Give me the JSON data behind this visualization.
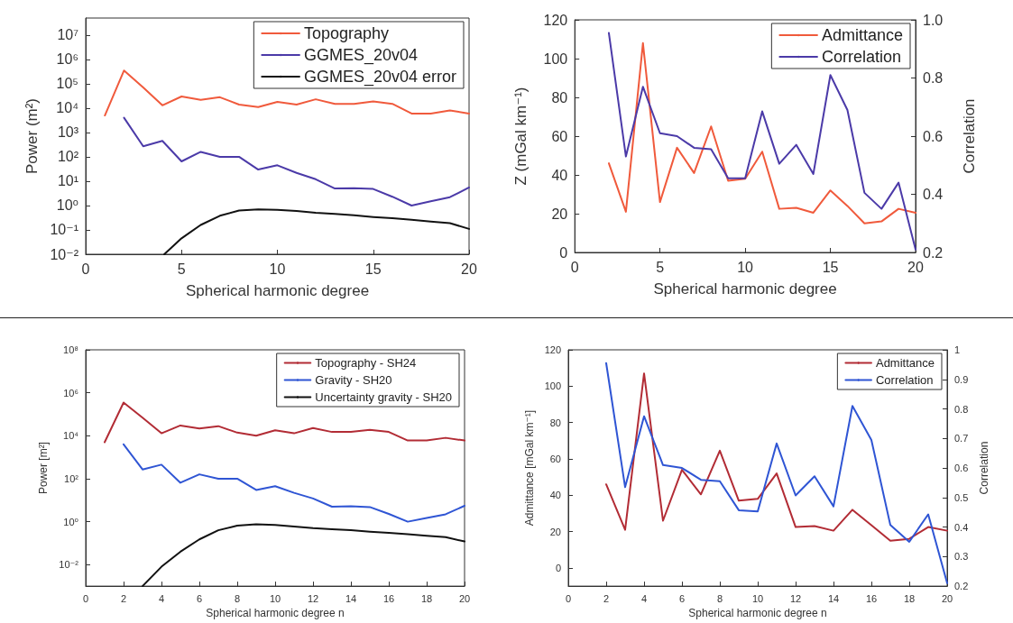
{
  "chart_data": [
    {
      "type": "line",
      "xlabel": "Spherical harmonic degree",
      "ylabel": "Power (m²)",
      "log": "y",
      "marker": "none",
      "line_style": "solid",
      "grid": false,
      "legend": "top right",
      "xlim": [
        0,
        20
      ],
      "xticks": [
        0,
        5,
        10,
        15,
        20
      ],
      "ylim": [
        0.01,
        50000000
      ],
      "yticks": [
        {
          "value": 0.01,
          "label": "10⁻²"
        },
        {
          "value": 0.1,
          "label": "10⁻¹"
        },
        {
          "value": 1,
          "label": "10⁰"
        },
        {
          "value": 10,
          "label": "10¹"
        },
        {
          "value": 100,
          "label": "10²"
        },
        {
          "value": 1000,
          "label": "10³"
        },
        {
          "value": 10000,
          "label": "10⁴"
        },
        {
          "value": 100000,
          "label": "10⁵"
        },
        {
          "value": 1000000,
          "label": "10⁶"
        },
        {
          "value": 10000000,
          "label": "10⁷"
        }
      ],
      "series": [
        {
          "name": "Topography",
          "color": "#f05a3c",
          "x": [
            1,
            2,
            3,
            4,
            5,
            6,
            7,
            8,
            9,
            10,
            11,
            12,
            13,
            14,
            15,
            16,
            17,
            18,
            19,
            20
          ],
          "values": [
            5000,
            350000,
            70000,
            13000,
            30000,
            22000,
            28000,
            14000,
            11000,
            18000,
            14000,
            23000,
            15000,
            15000,
            19000,
            15000,
            6000,
            6000,
            8000,
            6000
          ]
        },
        {
          "name": "GGMES_20v04",
          "color": "#4b3aa8",
          "x": [
            2,
            3,
            4,
            5,
            6,
            7,
            8,
            9,
            10,
            11,
            12,
            13,
            14,
            15,
            16,
            17,
            18,
            19,
            20
          ],
          "values": [
            4000,
            270,
            450,
            65,
            160,
            100,
            100,
            30,
            45,
            22,
            12,
            5,
            5.2,
            4.8,
            2.3,
            1,
            1.5,
            2.2,
            5.5
          ]
        },
        {
          "name": "GGMES_20v04 error",
          "color": "#111111",
          "x": [
            4.1,
            5,
            6,
            7,
            8,
            9,
            10,
            11,
            12,
            13,
            14,
            15,
            16,
            17,
            18,
            19,
            20
          ],
          "values": [
            0.01,
            0.045,
            0.16,
            0.38,
            0.62,
            0.7,
            0.66,
            0.6,
            0.5,
            0.45,
            0.4,
            0.34,
            0.3,
            0.26,
            0.22,
            0.19,
            0.11
          ]
        }
      ]
    },
    {
      "type": "line",
      "xlabel": "Spherical harmonic degree",
      "ylabel": "Z (mGal km⁻¹)",
      "y2label": "Correlation",
      "marker": "none",
      "line_style": "solid",
      "grid": false,
      "legend": "top right",
      "xlim": [
        0,
        20
      ],
      "xticks": [
        0,
        5,
        10,
        15,
        20
      ],
      "ylim": [
        0,
        120
      ],
      "yticks": [
        0,
        20,
        40,
        60,
        80,
        100,
        120
      ],
      "y2lim": [
        0.2,
        1
      ],
      "y2ticks": [
        0.2,
        0.4,
        0.6,
        0.8,
        {
          "value": 1,
          "label": "1.0"
        }
      ],
      "series": [
        {
          "name": "Admittance",
          "color": "#f05a3c",
          "x": [
            2,
            3,
            4,
            5,
            6,
            7,
            8,
            9,
            10,
            11,
            12,
            13,
            14,
            15,
            16,
            17,
            18,
            19,
            20
          ],
          "values": [
            46,
            21,
            108,
            26,
            54,
            41,
            65,
            37,
            38,
            52,
            22.5,
            23,
            20.5,
            32,
            24,
            15,
            16,
            22.5,
            20.5
          ]
        },
        {
          "name": "Correlation",
          "color": "#4b3aa8",
          "axis": "y2",
          "x": [
            2,
            3,
            4,
            5,
            6,
            7,
            8,
            9,
            10,
            11,
            12,
            13,
            14,
            15,
            16,
            17,
            18,
            19,
            20
          ],
          "values": [
            0.955,
            0.53,
            0.77,
            0.61,
            0.6,
            0.56,
            0.555,
            0.455,
            0.455,
            0.685,
            0.505,
            0.57,
            0.47,
            0.81,
            0.69,
            0.405,
            0.35,
            0.44,
            0.21
          ]
        }
      ]
    },
    {
      "type": "line",
      "xlabel": "Spherical harmonic degree n",
      "ylabel": "Power [m²]",
      "log": "y",
      "marker": "none",
      "line_style": "solid",
      "grid": false,
      "legend": "top right",
      "xlim": [
        0,
        20
      ],
      "xticks": [
        0,
        2,
        4,
        6,
        8,
        10,
        12,
        14,
        16,
        18,
        20
      ],
      "ylim": [
        0.001,
        100000000
      ],
      "yticks": [
        {
          "value": 0.01,
          "label": "10⁻²"
        },
        {
          "value": 1,
          "label": "10⁰"
        },
        {
          "value": 100,
          "label": "10²"
        },
        {
          "value": 10000,
          "label": "10⁴"
        },
        {
          "value": 1000000,
          "label": "10⁶"
        },
        {
          "value": 100000000,
          "label": "10⁸"
        }
      ],
      "series": [
        {
          "name": "Topography - SH24",
          "color": "#b22c35",
          "x": [
            1,
            2,
            3,
            4,
            5,
            6,
            7,
            8,
            9,
            10,
            11,
            12,
            13,
            14,
            15,
            16,
            17,
            18,
            19,
            20
          ],
          "values": [
            5000,
            350000,
            70000,
            13000,
            30000,
            22000,
            28000,
            14000,
            10000,
            18000,
            13000,
            23000,
            15000,
            15000,
            19000,
            15000,
            6000,
            6000,
            8000,
            6000
          ]
        },
        {
          "name": "Gravity - SH20",
          "color": "#2f55d4",
          "x": [
            2,
            3,
            4,
            5,
            6,
            7,
            8,
            9,
            10,
            11,
            12,
            13,
            14,
            15,
            16,
            17,
            18,
            19,
            20
          ],
          "values": [
            4000,
            270,
            450,
            65,
            160,
            100,
            100,
            30,
            45,
            22,
            12,
            5,
            5.2,
            4.8,
            2.3,
            1,
            1.5,
            2.2,
            5.5
          ]
        },
        {
          "name": "Uncertainty gravity - SH20",
          "color": "#111111",
          "x": [
            3,
            4,
            5,
            6,
            7,
            8,
            9,
            10,
            11,
            12,
            13,
            14,
            15,
            16,
            17,
            18,
            19,
            20
          ],
          "values": [
            0.001,
            0.008,
            0.04,
            0.15,
            0.4,
            0.65,
            0.75,
            0.7,
            0.6,
            0.5,
            0.45,
            0.4,
            0.34,
            0.3,
            0.26,
            0.22,
            0.19,
            0.12
          ]
        }
      ]
    },
    {
      "type": "line",
      "xlabel": "Spherical harmonic degree n",
      "ylabel": "Admittance [mGal km⁻¹]",
      "y2label": "Correlation",
      "marker": "none",
      "line_style": "solid",
      "grid": false,
      "legend": "top right",
      "xlim": [
        0,
        20
      ],
      "xticks": [
        0,
        2,
        4,
        6,
        8,
        10,
        12,
        14,
        16,
        18,
        20
      ],
      "ylim": [
        -10,
        120
      ],
      "yticks": [
        0,
        20,
        40,
        60,
        80,
        100,
        120
      ],
      "y2lim": [
        0.2,
        1
      ],
      "y2ticks": [
        0.2,
        0.3,
        0.4,
        0.5,
        0.6,
        0.7,
        0.8,
        0.9,
        1
      ],
      "series": [
        {
          "name": "Admittance",
          "color": "#b22c35",
          "x": [
            2,
            3,
            4,
            5,
            6,
            7,
            8,
            9,
            10,
            11,
            12,
            13,
            14,
            15,
            16,
            17,
            18,
            19,
            20
          ],
          "values": [
            46,
            21,
            107,
            26,
            54,
            40.5,
            64.5,
            37,
            38,
            52,
            22.5,
            23,
            20.5,
            32,
            23.5,
            15,
            16,
            22.5,
            20.5
          ]
        },
        {
          "name": "Correlation",
          "color": "#2f55d4",
          "axis": "y2",
          "x": [
            2,
            3,
            4,
            5,
            6,
            7,
            8,
            9,
            10,
            11,
            12,
            13,
            14,
            15,
            16,
            17,
            18,
            19,
            20
          ],
          "values": [
            0.955,
            0.535,
            0.775,
            0.61,
            0.6,
            0.56,
            0.555,
            0.457,
            0.453,
            0.683,
            0.507,
            0.572,
            0.47,
            0.81,
            0.695,
            0.407,
            0.35,
            0.443,
            0.21
          ]
        }
      ]
    }
  ]
}
